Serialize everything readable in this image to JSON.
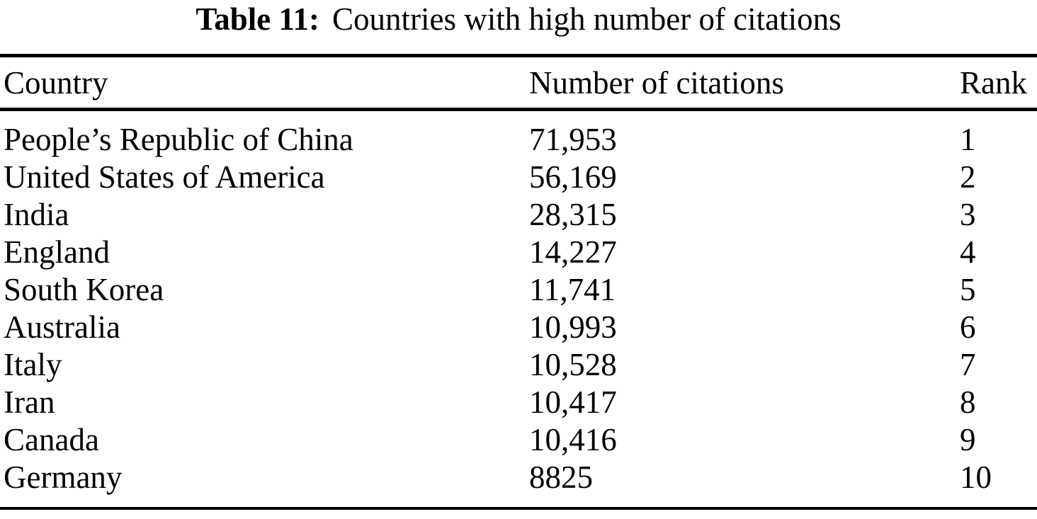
{
  "caption": {
    "label": "Table 11:",
    "text": "Countries with high number of citations"
  },
  "table": {
    "columns": [
      "Country",
      "Number of citations",
      "Rank"
    ],
    "rows": [
      {
        "country": "People’s Republic of China",
        "citations": "71,953",
        "rank": "1"
      },
      {
        "country": "United States of America",
        "citations": "56,169",
        "rank": "2"
      },
      {
        "country": "India",
        "citations": "28,315",
        "rank": "3"
      },
      {
        "country": "England",
        "citations": "14,227",
        "rank": "4"
      },
      {
        "country": "South Korea",
        "citations": "11,741",
        "rank": "5"
      },
      {
        "country": "Australia",
        "citations": "10,993",
        "rank": "6"
      },
      {
        "country": "Italy",
        "citations": "10,528",
        "rank": "7"
      },
      {
        "country": "Iran",
        "citations": "10,417",
        "rank": "8"
      },
      {
        "country": "Canada",
        "citations": "10,416",
        "rank": "9"
      },
      {
        "country": "Germany",
        "citations": "8825",
        "rank": "10"
      }
    ]
  },
  "colors": {
    "text": "#000000",
    "background": "#ffffff",
    "rule": "#000000"
  }
}
